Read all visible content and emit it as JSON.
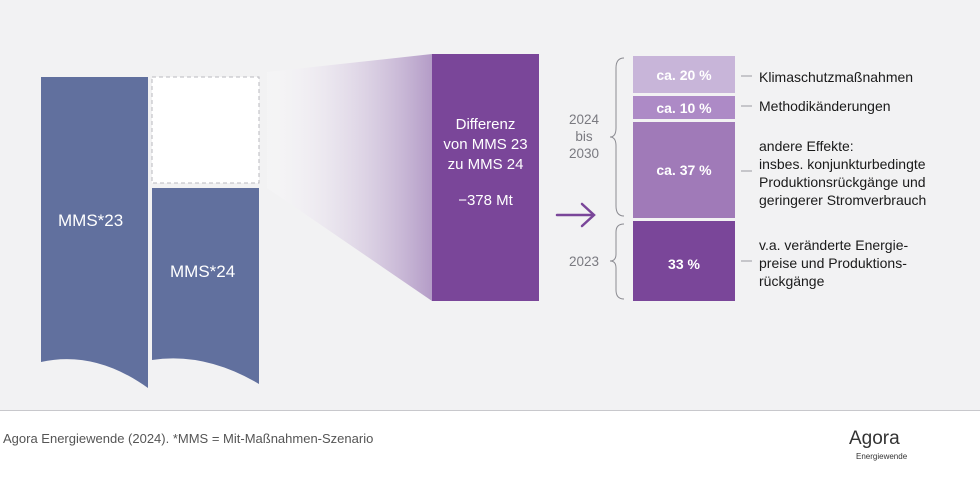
{
  "bars": {
    "mms23_label": "MMS*23",
    "mms24_label": "MMS*24"
  },
  "difference": {
    "line1": "Differenz",
    "line2": "von MMS 23",
    "line3": "zu MMS 24",
    "value": "−378 Mt"
  },
  "periods": {
    "later": [
      "2024",
      "bis",
      "2030"
    ],
    "earlier": "2023"
  },
  "segments": [
    {
      "label": "ca. 20 %",
      "share": 20,
      "color": "#c8b5d9",
      "description": [
        "Klimaschutzmaßnahmen"
      ]
    },
    {
      "label": "ca. 10 %",
      "share": 10,
      "color": "#ad8ac6",
      "description": [
        "Methodikänderungen"
      ]
    },
    {
      "label": "ca. 37 %",
      "share": 37,
      "color": "#a07ab8",
      "description": [
        "andere Effekte:",
        "insbes. konjunkturbedingte",
        "Produktionsrückgänge und",
        "geringerer Stromverbrauch"
      ]
    },
    {
      "label": "33 %",
      "share": 33,
      "color": "#7a4699",
      "description": [
        "v.a. veränderte Energie-",
        "preise und Produktions-",
        "rückgänge"
      ]
    }
  ],
  "colors": {
    "bar_blue": "#61709e",
    "diff_purple": "#7a4699",
    "arrow": "#7a4699"
  },
  "footer": {
    "source": "Agora Energiewende (2024). *MMS = Mit-Maßnahmen-Szenario",
    "logo_word": "Agora",
    "logo_sub": "Energiewende"
  }
}
